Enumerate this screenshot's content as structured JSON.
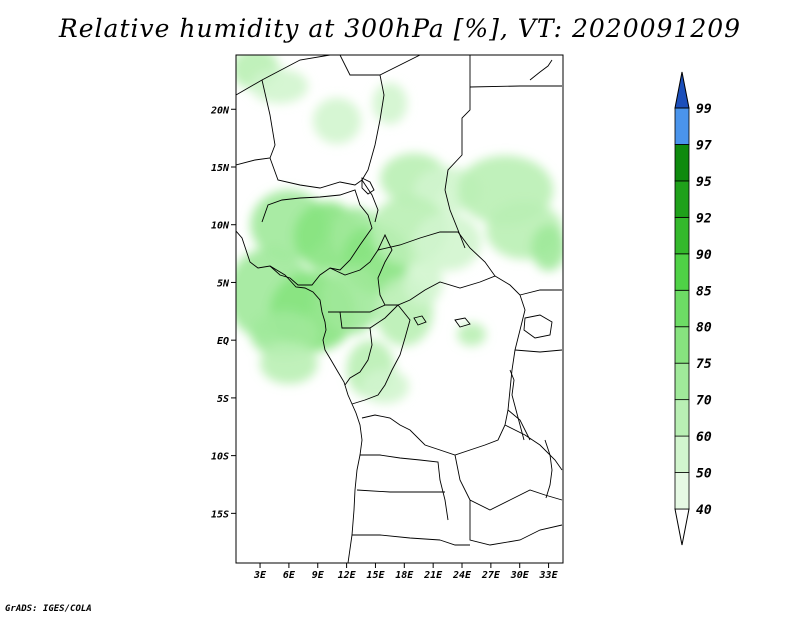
{
  "title": "Relative humidity at 300hPa [%], VT: 2020091209",
  "credit": "GrADS: IGES/COLA",
  "map": {
    "lon_min": 0.5,
    "lon_max": 34.5,
    "lat_min": -19.3,
    "lat_max": 24.7,
    "lat_ticks": [
      {
        "value": 20,
        "label": "20N"
      },
      {
        "value": 15,
        "label": "15N"
      },
      {
        "value": 10,
        "label": "10N"
      },
      {
        "value": 5,
        "label": "5N"
      },
      {
        "value": 0,
        "label": "EQ"
      },
      {
        "value": -5,
        "label": "5S"
      },
      {
        "value": -10,
        "label": "10S"
      },
      {
        "value": -15,
        "label": "15S"
      }
    ],
    "lon_ticks": [
      {
        "value": 3,
        "label": "3E"
      },
      {
        "value": 6,
        "label": "6E"
      },
      {
        "value": 9,
        "label": "9E"
      },
      {
        "value": 12,
        "label": "12E"
      },
      {
        "value": 15,
        "label": "15E"
      },
      {
        "value": 18,
        "label": "18E"
      },
      {
        "value": 21,
        "label": "21E"
      },
      {
        "value": 24,
        "label": "24E"
      },
      {
        "value": 27,
        "label": "27E"
      },
      {
        "value": 30,
        "label": "30E"
      },
      {
        "value": 33,
        "label": "33E"
      }
    ]
  },
  "colorbar": {
    "levels": [
      "40",
      "50",
      "60",
      "70",
      "75",
      "80",
      "85",
      "90",
      "92",
      "95",
      "97",
      "99"
    ],
    "colors": [
      "#e6f9e4",
      "#d2f5ce",
      "#b9efb4",
      "#a0e99a",
      "#87e37f",
      "#6ddc65",
      "#4fd246",
      "#34b92c",
      "#1fa11a",
      "#0e8a0d",
      "#4a94ec",
      "#2a6fd8",
      "#1c4fba"
    ]
  },
  "humidity_field": [
    {
      "lon": 2.5,
      "lat": 23.5,
      "rx": 2.5,
      "ry": 1.8,
      "level": 1
    },
    {
      "lon": 5.0,
      "lat": 22.0,
      "rx": 3.0,
      "ry": 1.5,
      "level": 0
    },
    {
      "lon": 11.0,
      "lat": 19.0,
      "rx": 2.5,
      "ry": 2.0,
      "level": 0
    },
    {
      "lon": 16.5,
      "lat": 20.5,
      "rx": 1.8,
      "ry": 1.8,
      "level": 0
    },
    {
      "lon": 19.0,
      "lat": 14.0,
      "rx": 3.5,
      "ry": 2.2,
      "level": 1
    },
    {
      "lon": 22.5,
      "lat": 13.0,
      "rx": 3.5,
      "ry": 2.0,
      "level": 0
    },
    {
      "lon": 28.5,
      "lat": 13.0,
      "rx": 5.0,
      "ry": 3.0,
      "level": 1
    },
    {
      "lon": 30.5,
      "lat": 9.5,
      "rx": 4.0,
      "ry": 2.5,
      "level": 1
    },
    {
      "lon": 33.0,
      "lat": 8.0,
      "rx": 1.8,
      "ry": 2.0,
      "level": 2
    },
    {
      "lon": 6.0,
      "lat": 10.0,
      "rx": 4.0,
      "ry": 3.0,
      "level": 2
    },
    {
      "lon": 10.0,
      "lat": 9.0,
      "rx": 3.5,
      "ry": 3.0,
      "level": 3
    },
    {
      "lon": 13.0,
      "lat": 9.0,
      "rx": 2.5,
      "ry": 2.5,
      "level": 2
    },
    {
      "lon": 15.0,
      "lat": 7.0,
      "rx": 3.5,
      "ry": 3.0,
      "level": 3
    },
    {
      "lon": 18.5,
      "lat": 9.5,
      "rx": 4.0,
      "ry": 3.0,
      "level": 1
    },
    {
      "lon": 22.5,
      "lat": 8.5,
      "rx": 3.5,
      "ry": 2.5,
      "level": 0
    },
    {
      "lon": 4.0,
      "lat": 4.0,
      "rx": 4.5,
      "ry": 4.0,
      "level": 2
    },
    {
      "lon": 8.5,
      "lat": 2.5,
      "rx": 4.5,
      "ry": 3.5,
      "level": 3
    },
    {
      "lon": 5.5,
      "lat": 0.5,
      "rx": 3.5,
      "ry": 2.0,
      "level": 2
    },
    {
      "lon": 6.0,
      "lat": -2.0,
      "rx": 3.0,
      "ry": 1.8,
      "level": 1
    },
    {
      "lon": 12.5,
      "lat": 3.5,
      "rx": 3.0,
      "ry": 3.0,
      "level": 2
    },
    {
      "lon": 14.5,
      "lat": -2.5,
      "rx": 2.5,
      "ry": 2.5,
      "level": 1
    },
    {
      "lon": 18.0,
      "lat": 2.5,
      "rx": 3.0,
      "ry": 3.0,
      "level": 1
    },
    {
      "lon": 16.0,
      "lat": -4.0,
      "rx": 2.5,
      "ry": 1.5,
      "level": 0
    },
    {
      "lon": 25.0,
      "lat": 0.5,
      "rx": 1.5,
      "ry": 1.0,
      "level": 1
    },
    {
      "lon": 20.0,
      "lat": 5.0,
      "rx": 2.0,
      "ry": 2.0,
      "level": 0
    }
  ]
}
